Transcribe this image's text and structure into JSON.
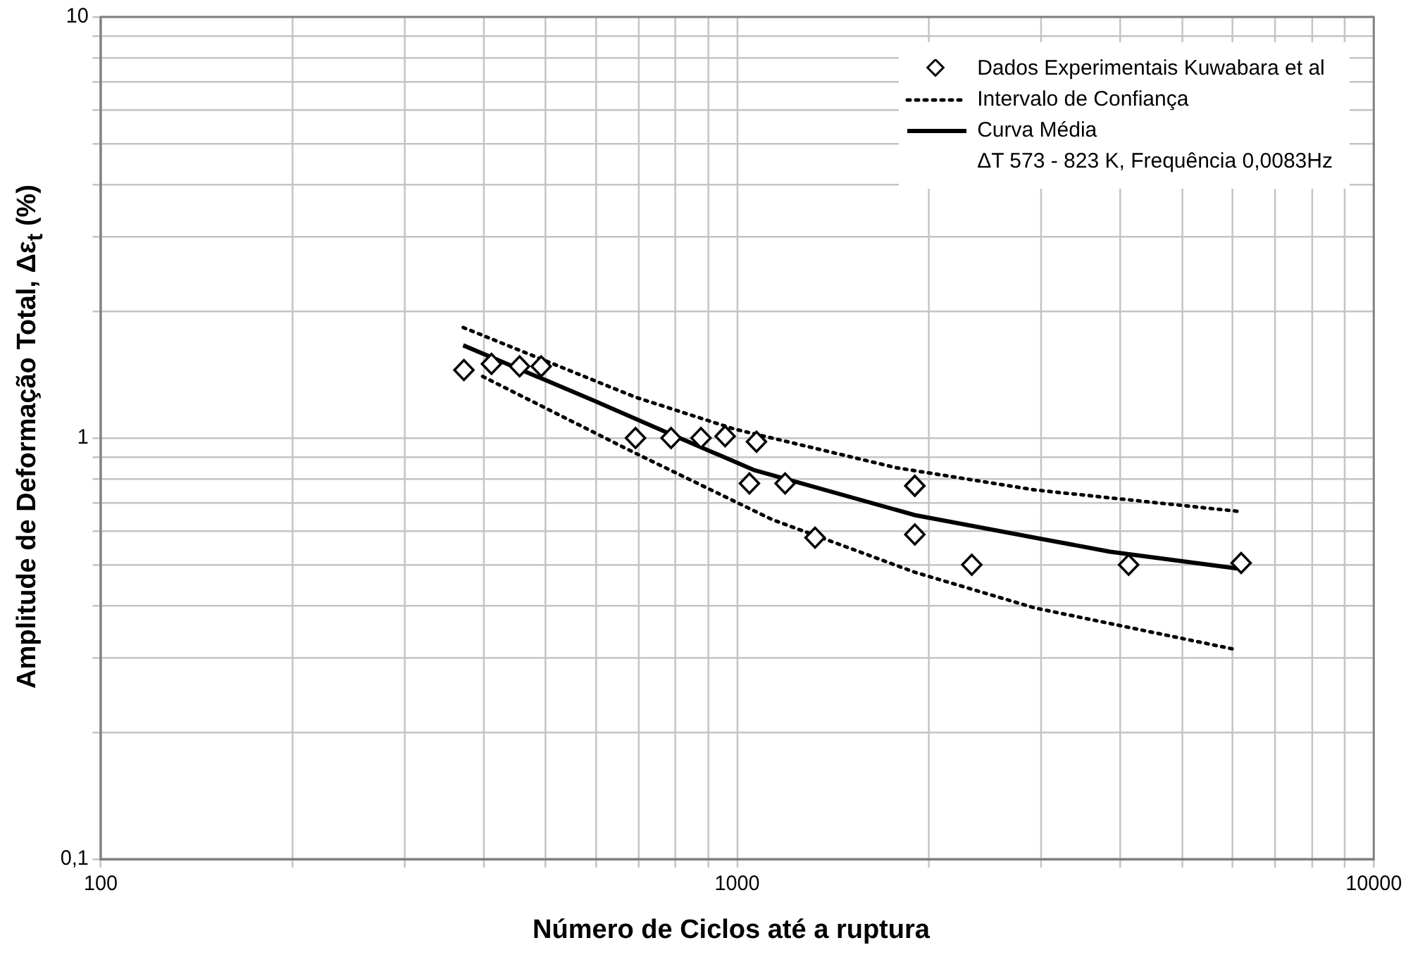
{
  "chart_data": {
    "type": "line",
    "xlabel": "Número de Ciclos até a ruptura",
    "ylabel": "Amplitude de Deformação Total, Δε$_{t}$ (%)",
    "log": "xy",
    "grid": true,
    "legend": "top right",
    "xlim": [
      100,
      10000
    ],
    "ylim": [
      0.1,
      10
    ],
    "xticks": [
      100,
      {
        "value": 200,
        "label": null
      },
      {
        "value": 300,
        "label": null
      },
      {
        "value": 400,
        "label": null
      },
      {
        "value": 500,
        "label": null
      },
      {
        "value": 600,
        "label": null
      },
      {
        "value": 700,
        "label": null
      },
      {
        "value": 800,
        "label": null
      },
      {
        "value": 900,
        "label": null
      },
      1000,
      {
        "value": 2000,
        "label": null
      },
      {
        "value": 3000,
        "label": null
      },
      {
        "value": 4000,
        "label": null
      },
      {
        "value": 5000,
        "label": null
      },
      {
        "value": 6000,
        "label": null
      },
      {
        "value": 7000,
        "label": null
      },
      {
        "value": 8000,
        "label": null
      },
      {
        "value": 9000,
        "label": null
      },
      10000
    ],
    "yticks": [
      {
        "value": 0.1,
        "label": "0,1"
      },
      {
        "value": 0.2,
        "label": null
      },
      {
        "value": 0.3,
        "label": null
      },
      {
        "value": 0.4,
        "label": null
      },
      {
        "value": 0.5,
        "label": null
      },
      {
        "value": 0.6,
        "label": null
      },
      {
        "value": 0.7,
        "label": null
      },
      {
        "value": 0.8,
        "label": null
      },
      {
        "value": 0.9,
        "label": null
      },
      1,
      {
        "value": 2,
        "label": null
      },
      {
        "value": 3,
        "label": null
      },
      {
        "value": 4,
        "label": null
      },
      {
        "value": 5,
        "label": null
      },
      {
        "value": 6,
        "label": null
      },
      {
        "value": 7,
        "label": null
      },
      {
        "value": 8,
        "label": null
      },
      {
        "value": 9,
        "label": null
      },
      10
    ],
    "annotations": [
      "ΔT 573 - 823 K, Frequência 0,0083Hz"
    ],
    "series": [
      {
        "name": "Dados Experimentais Kuwabara et al",
        "type": "scatter",
        "marker": "diamond",
        "color": "#000000",
        "x": [
          372,
          411,
          455,
          492,
          692,
          787,
          877,
          957,
          1072,
          1045,
          1189,
          1325,
          1901,
          1901,
          2336,
          4120,
          6190
        ],
        "values": [
          1.45,
          1.5,
          1.48,
          1.48,
          1.0,
          1.0,
          1.0,
          1.01,
          0.98,
          0.78,
          0.78,
          0.58,
          0.77,
          0.59,
          0.5,
          0.5,
          0.505
        ]
      },
      {
        "name": "Intervalo de Confiança",
        "type": "line",
        "line_style": "dotted",
        "color": "#000000",
        "x": [
          371,
          692,
          990,
          1778,
          2931,
          6100
        ],
        "values": [
          1.83,
          1.25,
          1.05,
          0.85,
          0.753,
          0.67
        ]
      },
      {
        "type": "line",
        "line_style": "dotted",
        "color": "#000000",
        "x": [
          398,
          692,
          1135,
          1901,
          2931,
          6100
        ],
        "values": [
          1.4,
          0.92,
          0.64,
          0.48,
          0.395,
          0.314
        ]
      },
      {
        "name": "Curva Média",
        "type": "line",
        "line_style": "solid",
        "color": "#000000",
        "x": [
          371,
          593,
          787,
          1061,
          1901,
          2931,
          3853,
          6100
        ],
        "values": [
          1.66,
          1.23,
          1.02,
          0.84,
          0.656,
          0.58,
          0.537,
          0.49
        ]
      }
    ]
  }
}
